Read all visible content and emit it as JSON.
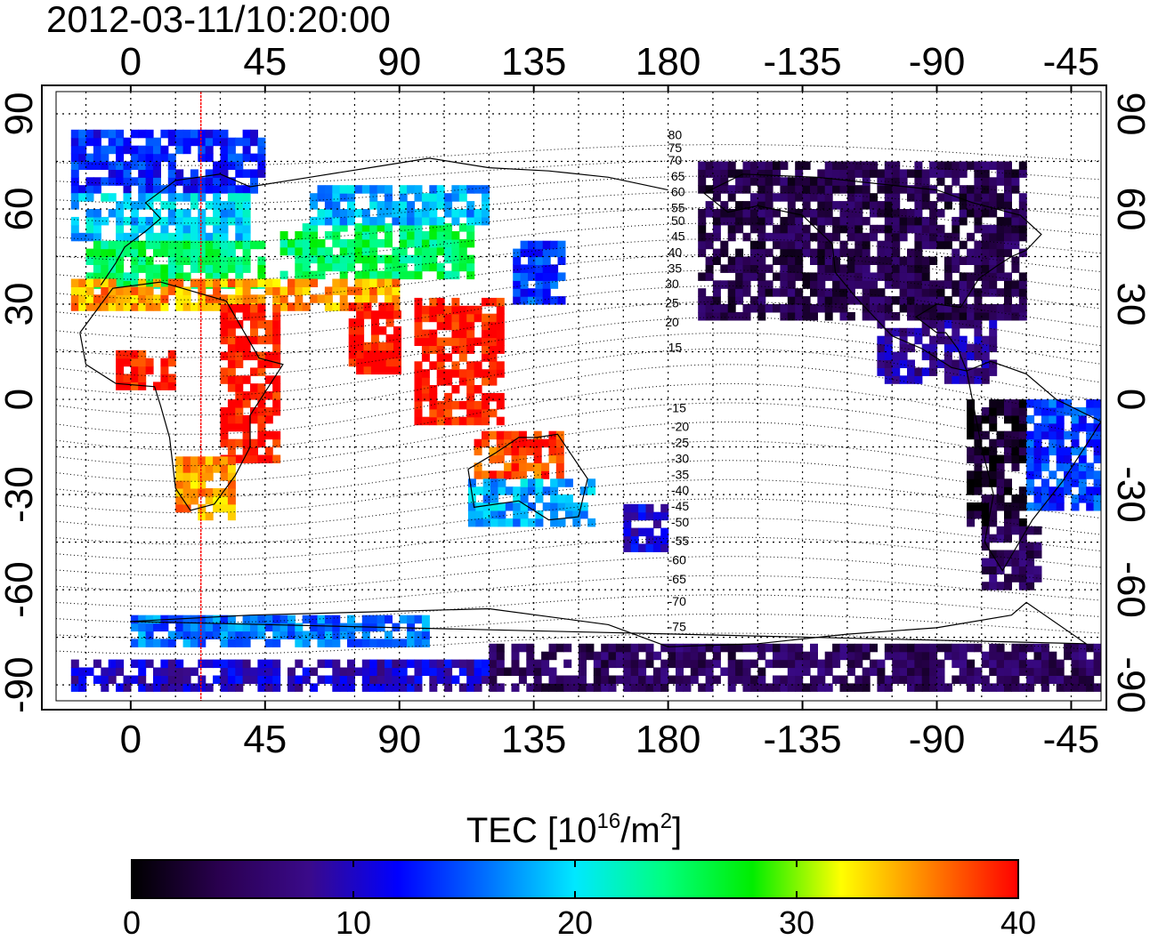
{
  "title": "2012-03-11/10:20:00",
  "map": {
    "lon_range": [
      -25,
      325
    ],
    "lat_range": [
      -95,
      97
    ],
    "lon_ticks": [
      {
        "lon": 0,
        "label": "0"
      },
      {
        "lon": 45,
        "label": "45"
      },
      {
        "lon": 90,
        "label": "90"
      },
      {
        "lon": 135,
        "label": "135"
      },
      {
        "lon": 180,
        "label": "180"
      },
      {
        "lon": 225,
        "label": "-135"
      },
      {
        "lon": 270,
        "label": "-90"
      },
      {
        "lon": 315,
        "label": "-45"
      }
    ],
    "lat_ticks": [
      {
        "lat": 90,
        "label": "90"
      },
      {
        "lat": 60,
        "label": "60"
      },
      {
        "lat": 30,
        "label": "30"
      },
      {
        "lat": 0,
        "label": "0"
      },
      {
        "lat": -30,
        "label": "-30"
      },
      {
        "lat": -60,
        "label": "-60"
      },
      {
        "lat": -90,
        "label": "-90"
      }
    ],
    "grid_lon_step": 15,
    "grid_lat_step": 15,
    "grid": "dotted",
    "red_line_lon": 23.5,
    "mag_labels": [
      {
        "text": "80",
        "lon": 180,
        "lat": 82
      },
      {
        "text": "75",
        "lon": 180,
        "lat": 78
      },
      {
        "text": "70",
        "lon": 180,
        "lat": 74
      },
      {
        "text": "65",
        "lon": 181,
        "lat": 69
      },
      {
        "text": "60",
        "lon": 181,
        "lat": 64
      },
      {
        "text": "55",
        "lon": 181,
        "lat": 59
      },
      {
        "text": "50",
        "lon": 181,
        "lat": 55
      },
      {
        "text": "45",
        "lon": 181,
        "lat": 50
      },
      {
        "text": "40",
        "lon": 180,
        "lat": 45
      },
      {
        "text": "35",
        "lon": 180,
        "lat": 40
      },
      {
        "text": "30",
        "lon": 179,
        "lat": 35
      },
      {
        "text": "25",
        "lon": 179,
        "lat": 29
      },
      {
        "text": "20",
        "lon": 179,
        "lat": 23
      },
      {
        "text": "15",
        "lon": 180,
        "lat": 15
      },
      {
        "text": "-15",
        "lon": 180,
        "lat": -4
      },
      {
        "text": "-20",
        "lon": 181,
        "lat": -10
      },
      {
        "text": "-25",
        "lon": 181,
        "lat": -15
      },
      {
        "text": "-30",
        "lon": 181,
        "lat": -20
      },
      {
        "text": "-35",
        "lon": 181,
        "lat": -25
      },
      {
        "text": "-40",
        "lon": 181,
        "lat": -30
      },
      {
        "text": "-45",
        "lon": 181,
        "lat": -35
      },
      {
        "text": "-50",
        "lon": 181,
        "lat": -40
      },
      {
        "text": "-55",
        "lon": 181,
        "lat": -46
      },
      {
        "text": "-60",
        "lon": 180,
        "lat": -52
      },
      {
        "text": "-65",
        "lon": 180,
        "lat": -58
      },
      {
        "text": "-70",
        "lon": 180,
        "lat": -65
      },
      {
        "text": "-75",
        "lon": 180,
        "lat": -73
      }
    ],
    "tec_regions": [
      {
        "name": "europe-north",
        "lon": [
          -20,
          45
        ],
        "lat": [
          65,
          85
        ],
        "tec": 13
      },
      {
        "name": "europe-mid",
        "lon": [
          -20,
          40
        ],
        "lat": [
          50,
          65
        ],
        "tec": 19
      },
      {
        "name": "europe-south",
        "lon": [
          -15,
          45
        ],
        "lat": [
          35,
          50
        ],
        "tec": 25
      },
      {
        "name": "asia-mid",
        "lon": [
          50,
          115
        ],
        "lat": [
          38,
          55
        ],
        "tec": 25
      },
      {
        "name": "asia-north-sparse",
        "lon": [
          60,
          120
        ],
        "lat": [
          55,
          66
        ],
        "tec": 18
      },
      {
        "name": "mediterranean-band",
        "lon": [
          -20,
          90
        ],
        "lat": [
          28,
          38
        ],
        "tec": 35
      },
      {
        "name": "west-africa",
        "lon": [
          -5,
          15
        ],
        "lat": [
          3,
          15
        ],
        "tec": 40
      },
      {
        "name": "east-africa",
        "lon": [
          30,
          50
        ],
        "lat": [
          -20,
          28
        ],
        "tec": 40
      },
      {
        "name": "south-africa",
        "lon": [
          15,
          35
        ],
        "lat": [
          -38,
          -20
        ],
        "tec": 35
      },
      {
        "name": "india",
        "lon": [
          73,
          90
        ],
        "lat": [
          8,
          30
        ],
        "tec": 40
      },
      {
        "name": "se-asia",
        "lon": [
          95,
          125
        ],
        "lat": [
          -8,
          30
        ],
        "tec": 40
      },
      {
        "name": "japan",
        "lon": [
          128,
          145
        ],
        "lat": [
          30,
          48
        ],
        "tec": 14
      },
      {
        "name": "australia-north",
        "lon": [
          115,
          145
        ],
        "lat": [
          -25,
          -12
        ],
        "tec": 38
      },
      {
        "name": "australia",
        "lon": [
          113,
          155
        ],
        "lat": [
          -40,
          -25
        ],
        "tec": 18
      },
      {
        "name": "new-zealand",
        "lon": [
          165,
          180
        ],
        "lat": [
          -48,
          -34
        ],
        "tec": 11
      },
      {
        "name": "north-america",
        "lon": [
          190,
          300
        ],
        "lat": [
          25,
          75
        ],
        "tec": 4
      },
      {
        "name": "central-america",
        "lon": [
          250,
          290
        ],
        "lat": [
          5,
          25
        ],
        "tec": 8
      },
      {
        "name": "south-america-west",
        "lon": [
          280,
          300
        ],
        "lat": [
          -40,
          0
        ],
        "tec": 2
      },
      {
        "name": "south-america-east",
        "lon": [
          300,
          330
        ],
        "lat": [
          -35,
          0
        ],
        "tec": 14
      },
      {
        "name": "patagonia",
        "lon": [
          285,
          305
        ],
        "lat": [
          -60,
          -40
        ],
        "tec": 5
      },
      {
        "name": "antarctica",
        "lon": [
          120,
          330
        ],
        "lat": [
          -92,
          -78
        ],
        "tec": 5
      },
      {
        "name": "antarctic-band",
        "lon": [
          -20,
          120
        ],
        "lat": [
          -92,
          -83
        ],
        "tec": 10
      },
      {
        "name": "southern-ocean",
        "lon": [
          0,
          100
        ],
        "lat": [
          -78,
          -70
        ],
        "tec": 16
      }
    ],
    "coast_approx": [
      [
        [
          -10,
          36
        ],
        [
          -5,
          43
        ],
        [
          -2,
          48
        ],
        [
          5,
          53
        ],
        [
          10,
          57
        ],
        [
          5,
          62
        ],
        [
          15,
          69
        ],
        [
          30,
          71
        ],
        [
          40,
          67
        ],
        [
          60,
          70
        ],
        [
          80,
          73
        ],
        [
          100,
          76
        ],
        [
          120,
          73
        ],
        [
          140,
          72
        ],
        [
          160,
          70
        ],
        [
          180,
          66
        ]
      ],
      [
        [
          -17,
          21
        ],
        [
          -15,
          11
        ],
        [
          -5,
          5
        ],
        [
          8,
          4
        ],
        [
          10,
          -2
        ],
        [
          13,
          -12
        ],
        [
          15,
          -28
        ],
        [
          20,
          -35
        ],
        [
          28,
          -33
        ],
        [
          35,
          -24
        ],
        [
          40,
          -15
        ],
        [
          40,
          -5
        ],
        [
          51,
          11
        ],
        [
          43,
          13
        ],
        [
          32,
          31
        ],
        [
          10,
          37
        ],
        [
          -6,
          35
        ],
        [
          -17,
          21
        ]
      ],
      [
        [
          113,
          -22
        ],
        [
          115,
          -34
        ],
        [
          130,
          -32
        ],
        [
          140,
          -38
        ],
        [
          150,
          -37
        ],
        [
          153,
          -25
        ],
        [
          143,
          -11
        ],
        [
          136,
          -12
        ],
        [
          130,
          -12
        ],
        [
          122,
          -17
        ],
        [
          113,
          -22
        ]
      ],
      [
        [
          -80,
          9
        ],
        [
          -75,
          -15
        ],
        [
          -71,
          -30
        ],
        [
          -74,
          -45
        ],
        [
          -68,
          -54
        ],
        [
          -58,
          -38
        ],
        [
          -48,
          -26
        ],
        [
          -39,
          -13
        ],
        [
          -35,
          -7
        ],
        [
          -50,
          0
        ],
        [
          -60,
          8
        ],
        [
          -72,
          12
        ],
        [
          -80,
          9
        ]
      ],
      [
        [
          -168,
          65
        ],
        [
          -160,
          59
        ],
        [
          -150,
          61
        ],
        [
          -135,
          58
        ],
        [
          -125,
          49
        ],
        [
          -124,
          40
        ],
        [
          -117,
          32
        ],
        [
          -105,
          20
        ],
        [
          -95,
          16
        ],
        [
          -85,
          10
        ],
        [
          -80,
          9
        ],
        [
          -83,
          16
        ],
        [
          -87,
          21
        ],
        [
          -90,
          21
        ],
        [
          -97,
          26
        ],
        [
          -90,
          30
        ],
        [
          -82,
          29
        ],
        [
          -80,
          32
        ],
        [
          -76,
          38
        ],
        [
          -70,
          42
        ],
        [
          -65,
          45
        ],
        [
          -60,
          47
        ],
        [
          -55,
          52
        ],
        [
          -62,
          58
        ],
        [
          -78,
          62
        ],
        [
          -90,
          66
        ],
        [
          -110,
          68
        ],
        [
          -130,
          70
        ],
        [
          -155,
          71
        ],
        [
          -168,
          65
        ]
      ],
      [
        [
          -180,
          -78
        ],
        [
          -150,
          -77
        ],
        [
          -120,
          -74
        ],
        [
          -90,
          -72
        ],
        [
          -65,
          -68
        ],
        [
          -60,
          -64
        ],
        [
          -40,
          -77
        ],
        [
          0,
          -70
        ],
        [
          40,
          -68
        ],
        [
          80,
          -67
        ],
        [
          120,
          -66
        ],
        [
          160,
          -71
        ],
        [
          180,
          -78
        ]
      ]
    ]
  },
  "colorbar": {
    "label_main": "TEC  [10",
    "label_exp1": "16",
    "label_mid": "/m",
    "label_exp2": "2",
    "label_end": "]",
    "min": 0,
    "max": 40,
    "ticks": [
      {
        "value": 0,
        "label": "0"
      },
      {
        "value": 10,
        "label": "10"
      },
      {
        "value": 20,
        "label": "20"
      },
      {
        "value": 30,
        "label": "30"
      },
      {
        "value": 40,
        "label": "40"
      }
    ],
    "stops": [
      "#000000",
      "#2a0050",
      "#3a0a8a",
      "#0000ff",
      "#0070ff",
      "#00e8ff",
      "#00ff80",
      "#00ee00",
      "#ffff00",
      "#ff8000",
      "#ff0000"
    ]
  }
}
